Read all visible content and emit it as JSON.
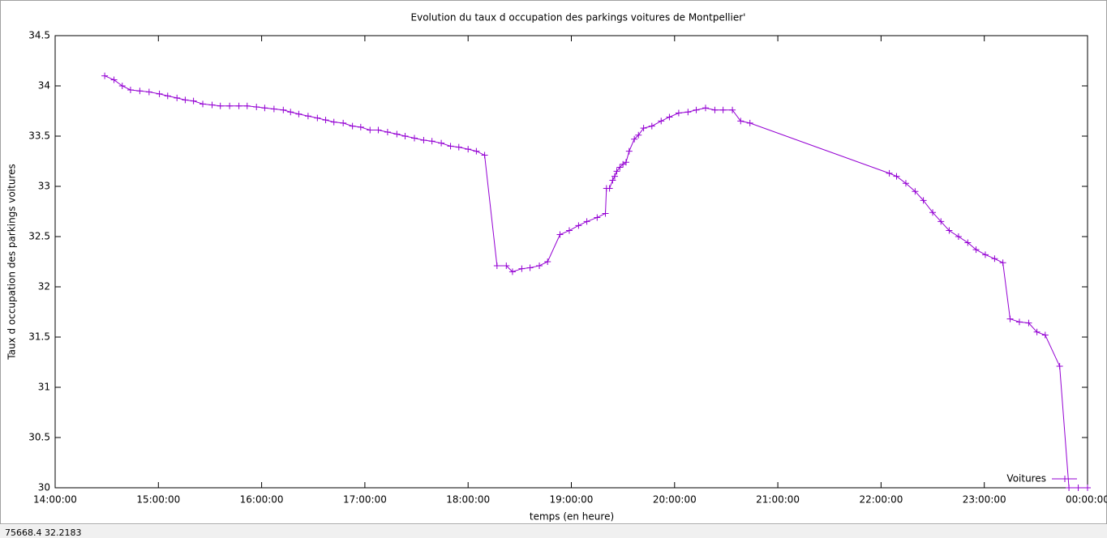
{
  "chart_data": {
    "type": "line",
    "title": "Evolution du taux d occupation des parkings voitures de Montpellier'",
    "x_label": "temps (en heure)",
    "y_label": "Taux d occupation des parkings voitures",
    "x": [
      14.48,
      14.57,
      14.65,
      14.73,
      14.82,
      14.91,
      15.01,
      15.09,
      15.18,
      15.26,
      15.34,
      15.43,
      15.52,
      15.6,
      15.69,
      15.78,
      15.86,
      15.95,
      16.03,
      16.12,
      16.21,
      16.28,
      16.36,
      16.45,
      16.54,
      16.62,
      16.7,
      16.79,
      16.88,
      16.96,
      17.05,
      17.13,
      17.22,
      17.31,
      17.39,
      17.48,
      17.57,
      17.65,
      17.74,
      17.83,
      17.91,
      18.0,
      18.08,
      18.16,
      18.28,
      18.37,
      18.43,
      18.52,
      18.6,
      18.69,
      18.77,
      18.89,
      18.98,
      19.07,
      19.15,
      19.25,
      19.33,
      19.34,
      19.37,
      19.4,
      19.42,
      19.44,
      19.47,
      19.5,
      19.53,
      19.56,
      19.61,
      19.65,
      19.7,
      19.78,
      19.87,
      19.95,
      20.04,
      20.13,
      20.21,
      20.3,
      20.39,
      20.47,
      20.56,
      20.64,
      20.73,
      22.08,
      22.15,
      22.24,
      22.33,
      22.41,
      22.5,
      22.58,
      22.66,
      22.75,
      22.84,
      22.92,
      23.01,
      23.1,
      23.18,
      23.25,
      23.34,
      23.43,
      23.51,
      23.59,
      23.73,
      23.82,
      23.91,
      24.0
    ],
    "series": [
      {
        "name": "Voitures",
        "color": "#9400d3",
        "values": [
          34.1,
          34.06,
          34.0,
          33.96,
          33.95,
          33.94,
          33.92,
          33.9,
          33.88,
          33.86,
          33.85,
          33.82,
          33.81,
          33.8,
          33.8,
          33.8,
          33.8,
          33.79,
          33.78,
          33.77,
          33.76,
          33.74,
          33.72,
          33.7,
          33.68,
          33.66,
          33.64,
          33.63,
          33.6,
          33.59,
          33.56,
          33.56,
          33.54,
          33.52,
          33.5,
          33.48,
          33.46,
          33.45,
          33.43,
          33.4,
          33.39,
          33.37,
          33.35,
          33.31,
          32.21,
          32.21,
          32.15,
          32.18,
          32.19,
          32.21,
          32.25,
          32.52,
          32.56,
          32.61,
          32.65,
          32.69,
          32.73,
          32.98,
          32.98,
          33.06,
          33.1,
          33.15,
          33.19,
          33.22,
          33.24,
          33.35,
          33.47,
          33.51,
          33.58,
          33.6,
          33.65,
          33.69,
          33.73,
          33.74,
          33.76,
          33.78,
          33.76,
          33.76,
          33.76,
          33.65,
          33.63,
          33.13,
          33.1,
          33.03,
          32.95,
          32.86,
          32.74,
          32.65,
          32.56,
          32.5,
          32.44,
          32.37,
          32.32,
          32.28,
          32.24,
          31.68,
          31.65,
          31.64,
          31.55,
          31.52,
          31.21,
          30.0,
          30.0,
          30.0
        ]
      }
    ],
    "xlim": [
      14,
      24
    ],
    "xticks": [
      {
        "value": 14,
        "label": "14:00:00"
      },
      {
        "value": 15,
        "label": "15:00:00"
      },
      {
        "value": 16,
        "label": "16:00:00"
      },
      {
        "value": 17,
        "label": "17:00:00"
      },
      {
        "value": 18,
        "label": "18:00:00"
      },
      {
        "value": 19,
        "label": "19:00:00"
      },
      {
        "value": 20,
        "label": "20:00:00"
      },
      {
        "value": 21,
        "label": "21:00:00"
      },
      {
        "value": 22,
        "label": "22:00:00"
      },
      {
        "value": 23,
        "label": "23:00:00"
      },
      {
        "value": 24,
        "label": "00:00:00"
      }
    ],
    "ylim": [
      30,
      34.5
    ],
    "yticks": [
      30,
      30.5,
      31,
      31.5,
      32,
      32.5,
      33,
      33.5,
      34,
      34.5
    ],
    "grid": false,
    "legend": "bottom-right"
  },
  "status_bar": "75668.4  32.2183"
}
